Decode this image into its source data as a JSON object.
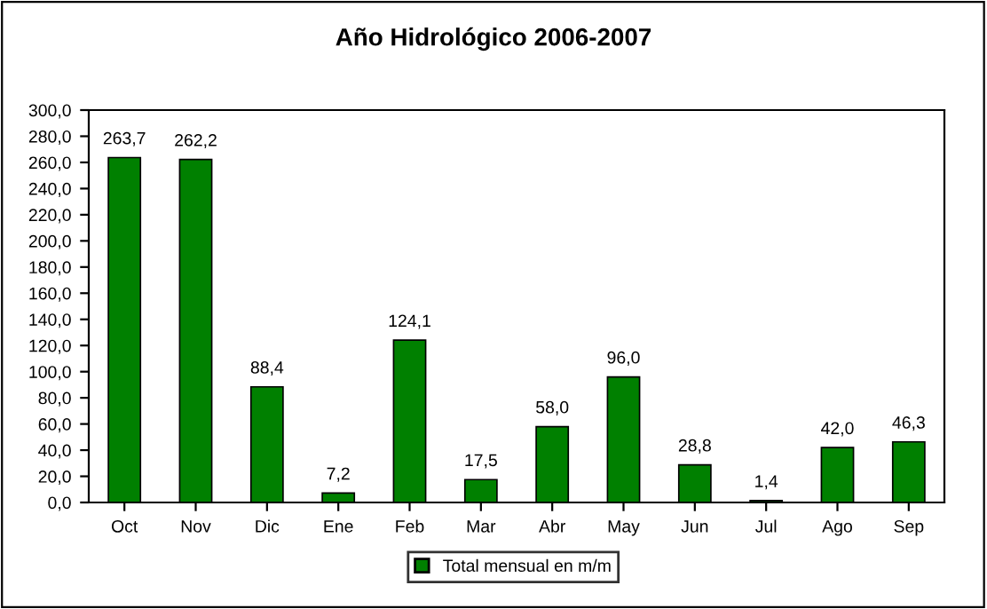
{
  "chart_data": {
    "type": "bar",
    "title": "Año Hidrológico 2006-2007",
    "categories": [
      "Oct",
      "Nov",
      "Dic",
      "Ene",
      "Feb",
      "Mar",
      "Abr",
      "May",
      "Jun",
      "Jul",
      "Ago",
      "Sep"
    ],
    "series": [
      {
        "name": "Total mensual en m/m",
        "color": "#008000",
        "values": [
          263.7,
          262.2,
          88.4,
          7.2,
          124.1,
          17.5,
          58.0,
          96.0,
          28.8,
          1.4,
          42.0,
          46.3
        ],
        "value_labels": [
          "263,7",
          "262,2",
          "88,4",
          "7,2",
          "124,1",
          "17,5",
          "58,0",
          "96,0",
          "28,8",
          "1,4",
          "42,0",
          "46,3"
        ]
      }
    ],
    "ylim": [
      0,
      300
    ],
    "yticks": [
      {
        "value": 0,
        "label": "0,0"
      },
      {
        "value": 20,
        "label": "20,0"
      },
      {
        "value": 40,
        "label": "40,0"
      },
      {
        "value": 60,
        "label": "60,0"
      },
      {
        "value": 80,
        "label": "80,0"
      },
      {
        "value": 100,
        "label": "100,0"
      },
      {
        "value": 120,
        "label": "120,0"
      },
      {
        "value": 140,
        "label": "140,0"
      },
      {
        "value": 160,
        "label": "160,0"
      },
      {
        "value": 180,
        "label": "180,0"
      },
      {
        "value": 200,
        "label": "200,0"
      },
      {
        "value": 220,
        "label": "220,0"
      },
      {
        "value": 240,
        "label": "240,0"
      },
      {
        "value": 260,
        "label": "260,0"
      },
      {
        "value": 280,
        "label": "280,0"
      },
      {
        "value": 300,
        "label": "300,0"
      }
    ],
    "grid": false,
    "legend": "bottom"
  }
}
